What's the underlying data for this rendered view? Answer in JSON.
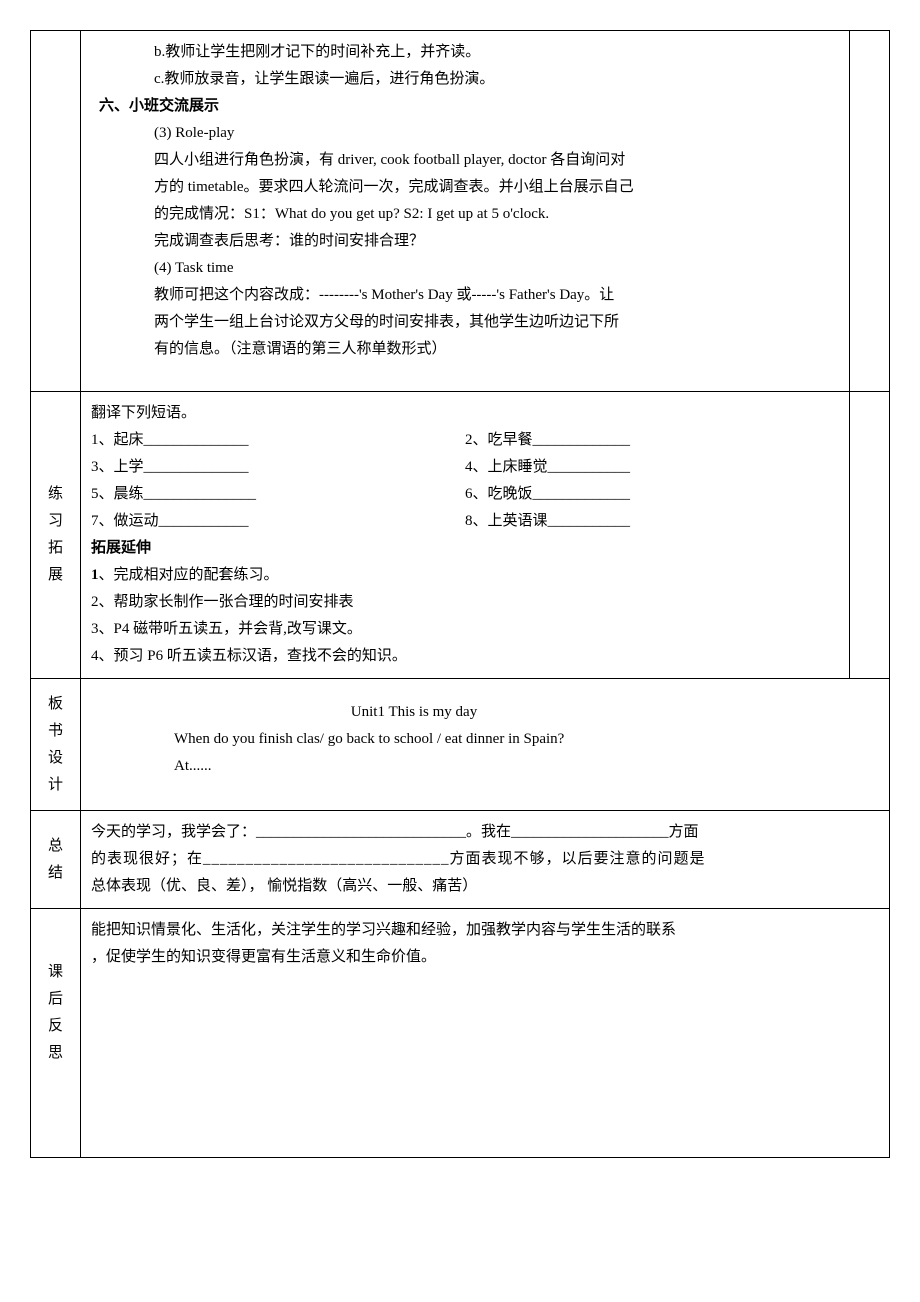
{
  "row1": {
    "lines": [
      {
        "text": "b.教师让学生把刚才记下的时间补充上，并齐读。",
        "class": "indent-1"
      },
      {
        "text": "c.教师放录音，让学生跟读一遍后，进行角色扮演。",
        "class": "indent-1"
      },
      {
        "text": "六、小班交流展示",
        "class": "section-title"
      },
      {
        "text": "(3) Role-play",
        "class": "indent-2"
      },
      {
        "text": "四人小组进行角色扮演，有 driver, cook football player, doctor 各自询问对",
        "class": "indent-2"
      },
      {
        "text": "方的 timetable。要求四人轮流问一次，完成调查表。并小组上台展示自己",
        "class": "indent-2"
      },
      {
        "text": "的完成情况：S1：What do you get up? S2: I get up at 5 o'clock.",
        "class": "indent-2"
      },
      {
        "text": "完成调查表后思考：谁的时间安排合理？",
        "class": "indent-2"
      },
      {
        "text": "(4) Task time",
        "class": "indent-2"
      },
      {
        "text": "教师可把这个内容改成：--------'s Mother's Day  或-----'s Father's Day。让",
        "class": "indent-2"
      },
      {
        "text": "两个学生一组上台讨论双方父母的时间安排表，其他学生边听边记下所",
        "class": "indent-2"
      },
      {
        "text": "有的信息。（注意谓语的第三人称单数形式）",
        "class": "indent-2"
      }
    ]
  },
  "row2": {
    "label": "练习拓展",
    "intro": " 翻译下列短语。",
    "exercises": [
      {
        "left": "1、起床______________",
        "right": "2、吃早餐_____________"
      },
      {
        "left": "3、上学______________",
        "right": "4、上床睡觉___________"
      },
      {
        "left": "5、晨练_______________",
        "right": "6、吃晚饭_____________"
      },
      {
        "left": "7、做运动____________",
        "right": "8、上英语课___________"
      }
    ],
    "extend_title": "拓展延伸",
    "extend_items": [
      "1、完成相对应的配套练习。",
      "2、帮助家长制作一张合理的时间安排表",
      "3、P4 磁带听五读五，并会背,改写课文。",
      "4、预习 P6 听五读五标汉语，查找不会的知识。"
    ]
  },
  "row3": {
    "label": "板书设计",
    "title": "Unit1 This is my day",
    "line1": "When  do  you  finish clas/ go back to school  / eat dinner in Spain?",
    "line2": "At......"
  },
  "row4": {
    "label": "总结",
    "text1": "今天的学习，我学会了：____________________________。我在_____________________方面",
    "text2": "的表现很好；在_____________________________方面表现不够，以后要注意的问题是",
    "text3": "总体表现（优、良、差），  愉悦指数（高兴、一般、痛苦）"
  },
  "row5": {
    "label": "课后反思",
    "text1": " 能把知识情景化、生活化，关注学生的学习兴趣和经验，加强教学内容与学生生活的联系",
    "text2": "，促使学生的知识变得更富有生活意义和生命价值。"
  },
  "colors": {
    "border": "#000000",
    "text": "#000000",
    "background": "#ffffff"
  },
  "fonts": {
    "body_family": "SimSun",
    "body_size": 15,
    "line_height": 1.8
  }
}
